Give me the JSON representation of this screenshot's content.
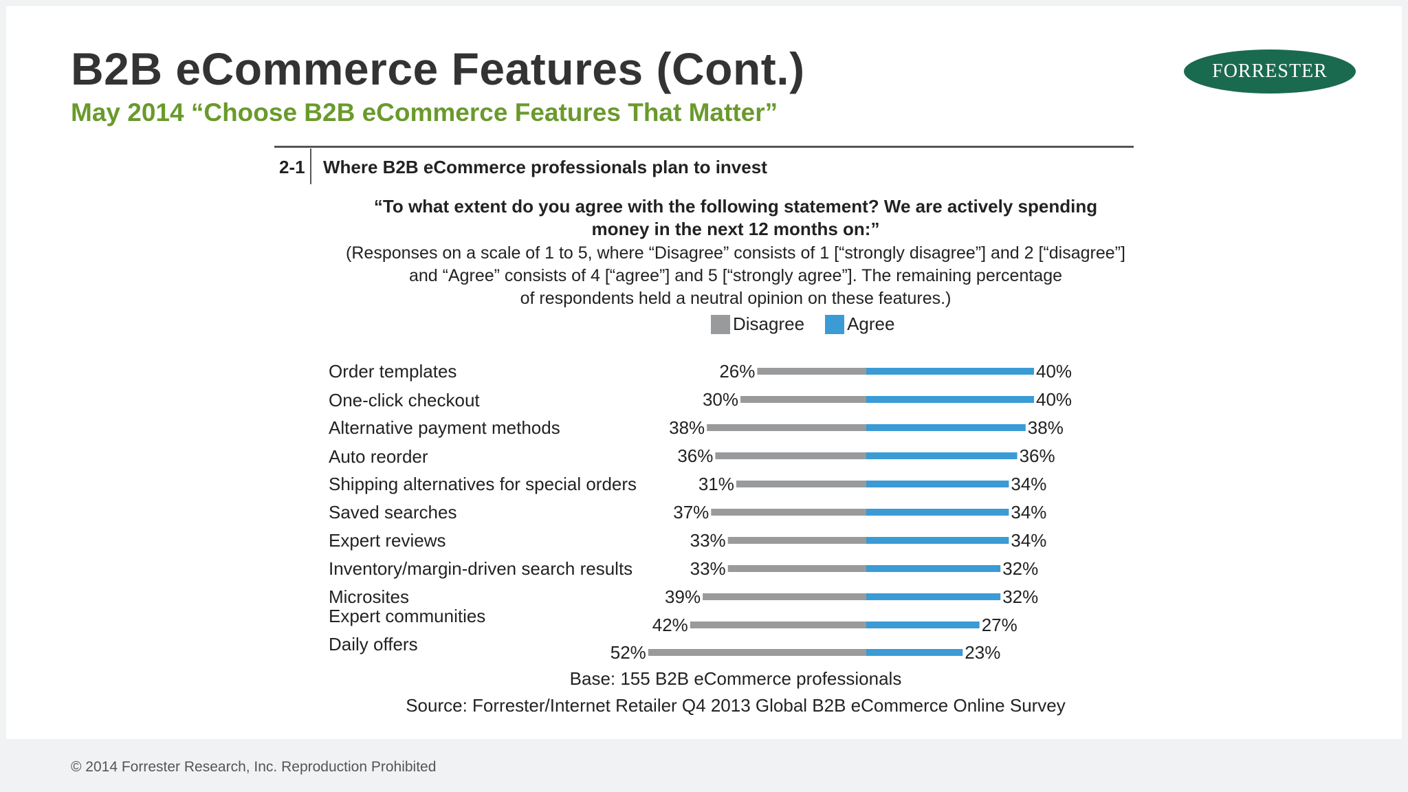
{
  "slide": {
    "title": "B2B eCommerce Features (Cont.)",
    "subtitle": "May 2014 “Choose B2B eCommerce Features That Matter”",
    "logo_text": "FORRESTER",
    "footer": "© 2014 Forrester Research, Inc. Reproduction Prohibited"
  },
  "figure": {
    "number": "2-1",
    "title": "Where B2B eCommerce professionals plan to invest",
    "question_line1": "“To what extent do you agree with the following statement? We are actively spending",
    "question_line2": "money in the next 12 months on:”",
    "note_line1": "(Responses on a scale of 1 to 5, where “Disagree” consists of 1 [“strongly disagree”] and 2 [“disagree”]",
    "note_line2": "and “Agree” consists of 4 [“agree”] and 5 [“strongly agree”]. The remaining percentage",
    "note_line3": "of respondents held a neutral opinion on these features.)",
    "base": "Base: 155 B2B eCommerce professionals",
    "source": "Source: Forrester/Internet Retailer Q4 2013 Global B2B eCommerce Online Survey"
  },
  "colors": {
    "disagree": "#999a9c",
    "agree": "#3a9bd5"
  },
  "chart_data": {
    "type": "bar",
    "orientation": "horizontal-diverging",
    "categories": [
      "Order templates",
      "One-click checkout",
      "Alternative payment methods",
      "Auto reorder",
      "Shipping alternatives for special orders",
      "Saved searches",
      "Expert reviews",
      "Inventory/margin-driven search results",
      "Microsites",
      "Expert communities",
      "Daily offers"
    ],
    "series": [
      {
        "name": "Disagree",
        "values": [
          26,
          30,
          38,
          36,
          31,
          37,
          33,
          33,
          39,
          42,
          52
        ],
        "labels": [
          "26%",
          "30%",
          "38%",
          "36%",
          "31%",
          "37%",
          "33%",
          "33%",
          "39%",
          "42%",
          "52%"
        ]
      },
      {
        "name": "Agree",
        "values": [
          40,
          40,
          38,
          36,
          34,
          34,
          34,
          32,
          32,
          27,
          23
        ],
        "labels": [
          "40%",
          "40%",
          "38%",
          "36%",
          "34%",
          "34%",
          "34%",
          "32%",
          "32%",
          "27%",
          "23%"
        ]
      }
    ],
    "legend": "top"
  }
}
